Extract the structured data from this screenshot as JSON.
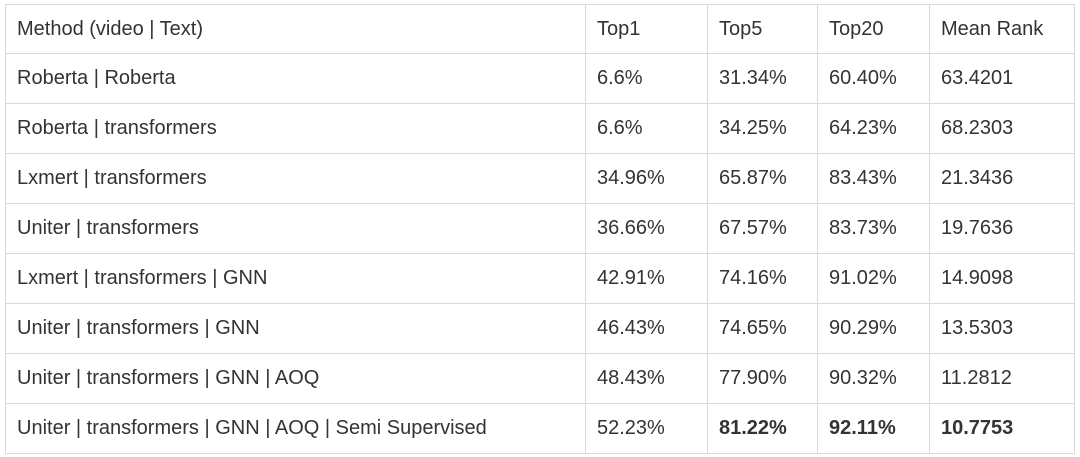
{
  "table": {
    "headers": [
      "Method (video | Text)",
      "Top1",
      "Top5",
      "Top20",
      "Mean Rank"
    ],
    "rows": [
      {
        "method": "Roberta | Roberta",
        "top1": "6.6%",
        "top5": "31.34%",
        "top20": "60.40%",
        "mean_rank": "63.4201"
      },
      {
        "method": "Roberta | transformers",
        "top1": "6.6%",
        "top5": "34.25%",
        "top20": "64.23%",
        "mean_rank": "68.2303"
      },
      {
        "method": "Lxmert | transformers",
        "top1": "34.96%",
        "top5": "65.87%",
        "top20": "83.43%",
        "mean_rank": "21.3436"
      },
      {
        "method": "Uniter | transformers",
        "top1": "36.66%",
        "top5": "67.57%",
        "top20": "83.73%",
        "mean_rank": "19.7636"
      },
      {
        "method": "Lxmert | transformers | GNN",
        "top1": "42.91%",
        "top5": "74.16%",
        "top20": "91.02%",
        "mean_rank": "14.9098"
      },
      {
        "method": "Uniter | transformers | GNN",
        "top1": "46.43%",
        "top5": "74.65%",
        "top20": "90.29%",
        "mean_rank": "13.5303"
      },
      {
        "method": "Uniter | transformers | GNN | AOQ",
        "top1": "48.43%",
        "top5": "77.90%",
        "top20": "90.32%",
        "mean_rank": "11.2812"
      },
      {
        "method": "Uniter | transformers | GNN | AOQ | Semi Supervised",
        "top1": "52.23%",
        "top5": "81.22%",
        "top20": "92.11%",
        "mean_rank": "10.7753"
      }
    ]
  }
}
